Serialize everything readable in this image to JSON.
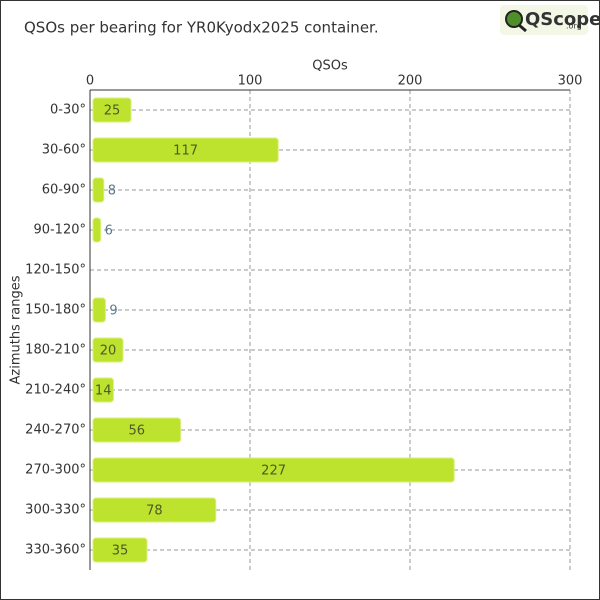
{
  "chart_data": {
    "type": "bar",
    "orientation": "horizontal",
    "title": "QSOs per bearing for YR0Kyodx2025 container.",
    "logo": "QScope",
    "logo_suffix": ".org",
    "xlabel": "QSOs",
    "ylabel": "Azimuths ranges",
    "categories": [
      "0-30°",
      "30-60°",
      "60-90°",
      "90-120°",
      "120-150°",
      "150-180°",
      "180-210°",
      "210-240°",
      "240-270°",
      "270-300°",
      "300-330°",
      "330-360°"
    ],
    "values": [
      25,
      117,
      8,
      6,
      0,
      9,
      20,
      14,
      56,
      227,
      78,
      35
    ],
    "color": "#bde32f",
    "xlim": [
      0,
      300
    ],
    "xticks": [
      0,
      100,
      200,
      300
    ],
    "grid": true
  }
}
